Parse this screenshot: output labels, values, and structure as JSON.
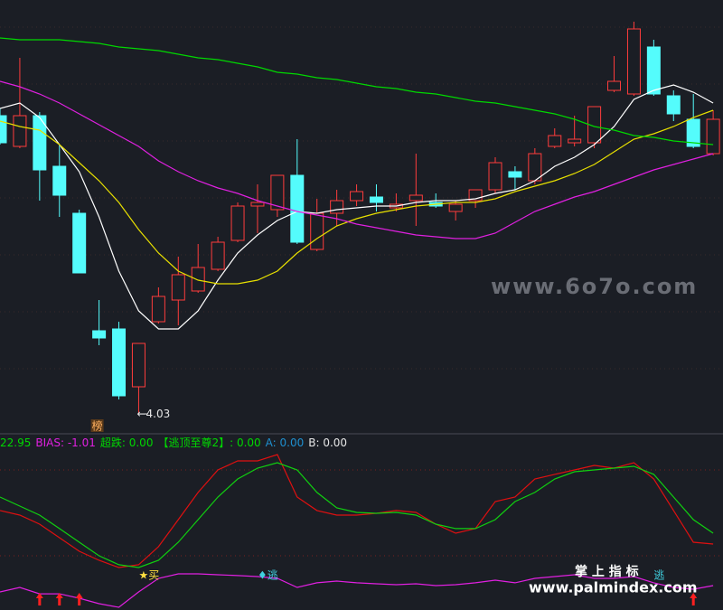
{
  "chart_data": [
    {
      "type": "candlestick",
      "open": [
        5.68,
        5.51,
        5.68,
        5.4,
        5.14,
        4.49,
        4.5,
        4.18,
        4.54,
        4.66,
        4.71,
        4.83,
        4.99,
        5.18,
        5.16,
        5.35,
        4.94,
        5.14,
        5.21,
        5.23,
        5.17,
        5.21,
        5.2,
        5.15,
        5.21,
        5.27,
        5.37,
        5.32,
        5.51,
        5.53,
        5.53,
        5.82,
        5.8,
        6.06,
        5.79,
        5.66,
        5.47
      ],
      "high": [
        5.72,
        6.0,
        5.7,
        5.52,
        5.16,
        4.66,
        4.54,
        4.42,
        4.73,
        4.9,
        4.97,
        5.01,
        5.2,
        5.3,
        5.35,
        5.55,
        5.22,
        5.27,
        5.3,
        5.3,
        5.25,
        5.47,
        5.25,
        5.21,
        5.27,
        5.45,
        5.4,
        5.5,
        5.61,
        5.68,
        5.73,
        6.01,
        6.2,
        6.1,
        5.82,
        5.8,
        5.71
      ],
      "low": [
        5.52,
        5.5,
        5.21,
        5.12,
        4.81,
        4.41,
        4.11,
        4.03,
        4.53,
        4.52,
        4.7,
        4.82,
        4.98,
        5.03,
        5.12,
        4.97,
        4.93,
        5.07,
        5.18,
        5.15,
        5.15,
        5.07,
        5.17,
        5.1,
        5.17,
        5.25,
        5.27,
        5.3,
        5.5,
        5.51,
        5.5,
        5.81,
        5.79,
        5.79,
        5.65,
        5.5,
        5.46
      ],
      "close": [
        5.53,
        5.68,
        5.38,
        5.24,
        4.81,
        4.45,
        4.13,
        4.42,
        4.68,
        4.8,
        4.84,
        4.98,
        5.18,
        5.2,
        5.35,
        4.98,
        5.14,
        5.21,
        5.26,
        5.2,
        5.19,
        5.24,
        5.18,
        5.19,
        5.27,
        5.42,
        5.34,
        5.47,
        5.57,
        5.55,
        5.73,
        5.87,
        6.16,
        5.8,
        5.69,
        5.51,
        5.66
      ],
      "up_color": "#ff3c3c",
      "down_color": "#54fcfc",
      "series": [
        {
          "color": "#ffffff",
          "values": [
            5.72,
            5.75,
            5.67,
            5.52,
            5.37,
            5.12,
            4.82,
            4.6,
            4.5,
            4.5,
            4.6,
            4.77,
            4.92,
            5.02,
            5.1,
            5.15,
            5.14,
            5.16,
            5.17,
            5.18,
            5.18,
            5.2,
            5.21,
            5.21,
            5.22,
            5.25,
            5.27,
            5.32,
            5.4,
            5.45,
            5.52,
            5.62,
            5.77,
            5.82,
            5.85,
            5.81,
            5.75
          ]
        },
        {
          "color": "#e8e000",
          "values": [
            5.65,
            5.62,
            5.6,
            5.52,
            5.42,
            5.32,
            5.2,
            5.05,
            4.92,
            4.82,
            4.77,
            4.75,
            4.75,
            4.77,
            4.82,
            4.92,
            5.0,
            5.07,
            5.11,
            5.14,
            5.16,
            5.18,
            5.19,
            5.2,
            5.2,
            5.22,
            5.26,
            5.29,
            5.32,
            5.36,
            5.41,
            5.48,
            5.55,
            5.58,
            5.62,
            5.67,
            5.71
          ]
        },
        {
          "color": "#e020e0",
          "values": [
            5.87,
            5.84,
            5.8,
            5.75,
            5.69,
            5.63,
            5.57,
            5.51,
            5.43,
            5.37,
            5.32,
            5.28,
            5.25,
            5.21,
            5.18,
            5.15,
            5.13,
            5.11,
            5.08,
            5.06,
            5.04,
            5.02,
            5.01,
            5.0,
            5.0,
            5.03,
            5.09,
            5.15,
            5.19,
            5.23,
            5.26,
            5.3,
            5.34,
            5.38,
            5.41,
            5.44,
            5.47
          ]
        },
        {
          "color": "#00d800",
          "values": [
            6.11,
            6.1,
            6.1,
            6.1,
            6.09,
            6.08,
            6.06,
            6.05,
            6.04,
            6.02,
            6.0,
            5.99,
            5.97,
            5.95,
            5.92,
            5.91,
            5.89,
            5.88,
            5.86,
            5.84,
            5.83,
            5.81,
            5.8,
            5.78,
            5.76,
            5.75,
            5.73,
            5.71,
            5.69,
            5.66,
            5.62,
            5.6,
            5.57,
            5.56,
            5.54,
            5.53,
            5.52
          ]
        }
      ],
      "ylim": [
        3.93,
        6.32
      ],
      "low_marker": {
        "index": 7,
        "value": 4.03
      },
      "tag": {
        "index": 5,
        "text": "榜"
      }
    },
    {
      "type": "line",
      "readout": [
        {
          "text": "22.95",
          "color": "#00d800"
        },
        {
          "text": "BIAS: -1.01",
          "color": "#e020e0"
        },
        {
          "text": "超跌: 0.00",
          "color": "#00d800"
        },
        {
          "text": "【逃顶至尊2】: 0.00",
          "color": "#00d800"
        },
        {
          "text": "A: 0.00",
          "color": "#1e90d0"
        },
        {
          "text": "B: 0.00",
          "color": "#e6e6e6"
        }
      ],
      "series": [
        {
          "color": "#e01010",
          "values": [
            56.3,
            53.1,
            46.9,
            37.5,
            28.1,
            21.9,
            16.9,
            18.8,
            31.3,
            50,
            68.8,
            84.4,
            90.6,
            90.6,
            95,
            65.6,
            56.3,
            53.1,
            53.1,
            54.4,
            56.3,
            55,
            46.9,
            40.6,
            43.8,
            62.5,
            65.6,
            78.1,
            81.3,
            84.4,
            87.5,
            85.6,
            89.4,
            78.1,
            56.3,
            34.4,
            33.1
          ]
        },
        {
          "color": "#10d010",
          "values": [
            65.6,
            59.4,
            53.1,
            43.8,
            34.4,
            25,
            18.8,
            16.9,
            21.9,
            34.4,
            50,
            65.6,
            78.1,
            85.6,
            89.4,
            84.4,
            68.8,
            58.1,
            55,
            54.4,
            55,
            53.1,
            46.9,
            43.8,
            43.8,
            50,
            62.5,
            68.8,
            78.1,
            83.1,
            84.4,
            85.6,
            86.9,
            81.3,
            65.6,
            50,
            40.6
          ]
        },
        {
          "color": "#e020e0",
          "values": [
            0,
            3.1,
            -1.3,
            -1.3,
            -4.4,
            -8.1,
            -10.6,
            0,
            9.4,
            12.5,
            12.5,
            11.9,
            11.3,
            10.6,
            9.4,
            3.1,
            6.3,
            7.5,
            6.3,
            5.6,
            5,
            5.6,
            4.4,
            5,
            6.3,
            8.1,
            6.3,
            9.4,
            10.6,
            11.9,
            9.4,
            9.4,
            10.6,
            6.3,
            3.1,
            1.9,
            4.4
          ]
        }
      ],
      "ylim": [
        -12.5,
        112.5
      ],
      "annotations": [
        {
          "index": 7,
          "text": "★买",
          "color": "#ffe040"
        },
        {
          "index": 13,
          "text": "♦逃",
          "color": "#40d0e0"
        },
        {
          "index": 33,
          "text": "逃",
          "color": "#40d0e0"
        }
      ],
      "buy_arrows": [
        2,
        3,
        4,
        35
      ]
    }
  ],
  "watermarks": {
    "site1": "www.6o7o.com",
    "site2": "www.palmindex.com",
    "brand": "掌 上 指 标"
  }
}
